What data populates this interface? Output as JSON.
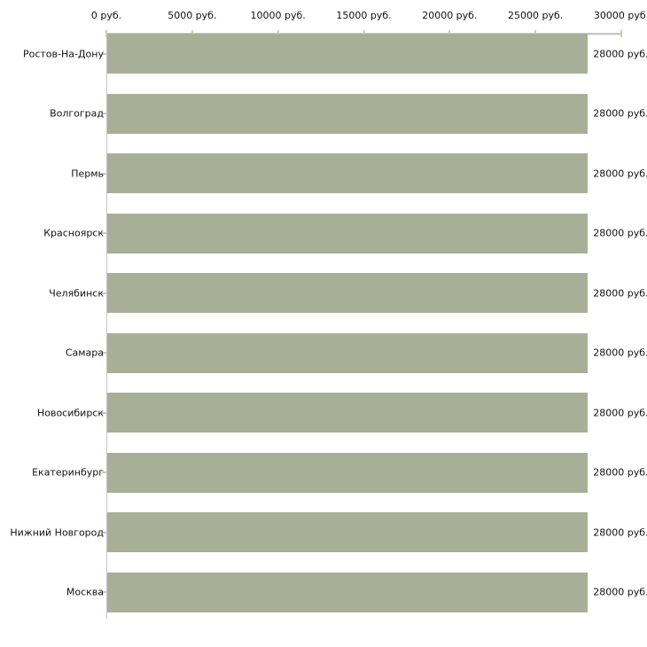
{
  "chart_data": {
    "type": "bar",
    "orientation": "horizontal",
    "title": "",
    "xlabel": "",
    "ylabel": "",
    "grid": false,
    "legend": false,
    "categories": [
      "Ростов-На-Дону",
      "Волгоград",
      "Пермь",
      "Красноярск",
      "Челябинск",
      "Самара",
      "Новосибирск",
      "Екатеринбург",
      "Нижний Новгород",
      "Москва"
    ],
    "values": [
      28000,
      28000,
      28000,
      28000,
      28000,
      28000,
      28000,
      28000,
      28000,
      28000
    ],
    "value_labels": [
      "28000 руб.",
      "28000 руб.",
      "28000 руб.",
      "28000 руб.",
      "28000 руб.",
      "28000 руб.",
      "28000 руб.",
      "28000 руб.",
      "28000 руб.",
      "28000 руб."
    ],
    "x_axis": {
      "position": "top",
      "xlim": [
        0,
        30000
      ],
      "ticks": [
        0,
        5000,
        10000,
        15000,
        20000,
        25000,
        30000
      ],
      "tick_labels": [
        "0 руб.",
        "5000 руб.",
        "10000 руб.",
        "15000 руб.",
        "20000 руб.",
        "25000 руб.",
        "30000 руб."
      ],
      "unit": "руб."
    },
    "colors": {
      "bar": "#a9af97",
      "axis_line": "#c6c6c6",
      "tick": "#ccd0a6",
      "text": "#111111",
      "background": "#ffffff"
    }
  }
}
